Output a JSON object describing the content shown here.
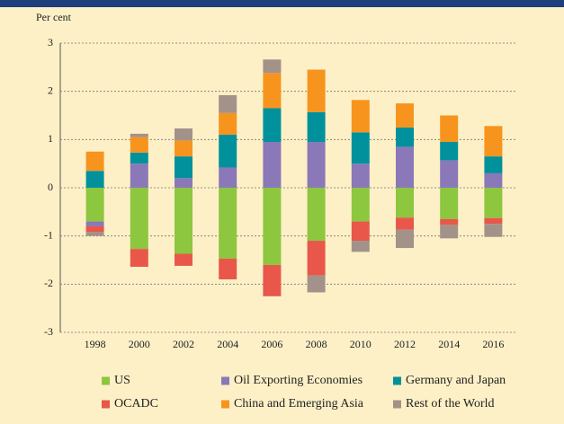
{
  "chart_data": {
    "type": "stacked_bar",
    "y_axis_label": "Per cent",
    "categories": [
      "1998",
      "2000",
      "2002",
      "2004",
      "2006",
      "2008",
      "2010",
      "2012",
      "2014",
      "2016"
    ],
    "series": [
      {
        "name": "US",
        "color": "#8dc63f",
        "values": [
          -0.7,
          -1.27,
          -1.37,
          -1.47,
          -1.6,
          -1.1,
          -0.7,
          -0.62,
          -0.65,
          -0.63
        ]
      },
      {
        "name": "Oil Exporting Economies",
        "color": "#8a78b8",
        "values": [
          -0.1,
          0.5,
          0.2,
          0.42,
          0.95,
          0.95,
          0.5,
          0.85,
          0.57,
          0.3
        ]
      },
      {
        "name": "Germany and Japan",
        "color": "#00919c",
        "values": [
          0.35,
          0.23,
          0.45,
          0.68,
          0.7,
          0.62,
          0.65,
          0.4,
          0.38,
          0.35
        ]
      },
      {
        "name": "OCADC",
        "color": "#e8574a",
        "values": [
          -0.12,
          -0.37,
          -0.25,
          -0.43,
          -0.65,
          -0.72,
          -0.4,
          -0.25,
          -0.12,
          -0.12
        ]
      },
      {
        "name": "China and Emerging Asia",
        "color": "#f7941e",
        "values": [
          0.4,
          0.32,
          0.33,
          0.45,
          0.73,
          0.88,
          0.67,
          0.5,
          0.55,
          0.63
        ]
      },
      {
        "name": "Rest of the World",
        "color": "#a39289",
        "values": [
          -0.08,
          0.07,
          0.25,
          0.37,
          0.28,
          -0.35,
          -0.23,
          -0.38,
          -0.28,
          -0.27
        ]
      }
    ],
    "ylim": [
      -3,
      3
    ],
    "yticks": [
      -3,
      -2,
      -1,
      0,
      1,
      2,
      3
    ],
    "grid": true
  }
}
